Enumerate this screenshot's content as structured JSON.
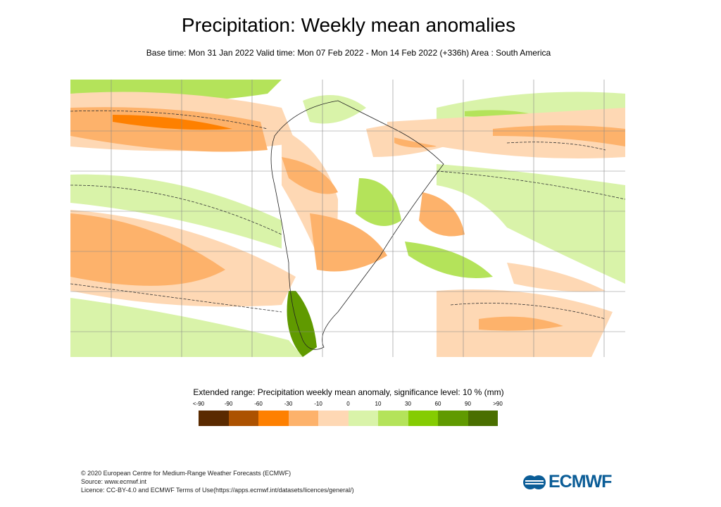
{
  "title": "Precipitation: Weekly mean anomalies",
  "subtitle": "Base time: Mon 31 Jan 2022 Valid time: Mon 07 Feb 2022 - Mon 14 Feb 2022 (+336h) Area : South America",
  "map": {
    "region": "South America",
    "contour_style": "dashed significance contours",
    "colors": {
      "strong_dry": "#fe8000",
      "dry": "#fdb26b",
      "weak_dry": "#fed8b4",
      "weak_wet": "#d9f3a9",
      "wet": "#b4e35a",
      "strong_wet": "#85cc02",
      "very_wet": "#609a00"
    }
  },
  "legend": {
    "title": "Extended range: Precipitation weekly mean anomaly, significance level: 10 % (mm)",
    "ticks": [
      "<-90",
      "-90",
      "-60",
      "-30",
      "-10",
      "0",
      "10",
      "30",
      "60",
      "90",
      ">90"
    ],
    "colors": [
      "#5a2a00",
      "#ac5200",
      "#fe8000",
      "#fdb26b",
      "#fed8b4",
      "#d9f3a9",
      "#b4e35a",
      "#85cc02",
      "#609a00",
      "#4a6f00"
    ]
  },
  "footer": {
    "line1": "© 2020 European Centre for Medium-Range Weather Forecasts (ECMWF)",
    "line2": "Source: www.ecmwf.int",
    "line3": "Licence: CC-BY-4.0 and ECMWF Terms of Use(https://apps.ecmwf.int/datasets/licences/general/)"
  },
  "logo": {
    "text": "ECMWF",
    "color": "#0b5d97"
  }
}
